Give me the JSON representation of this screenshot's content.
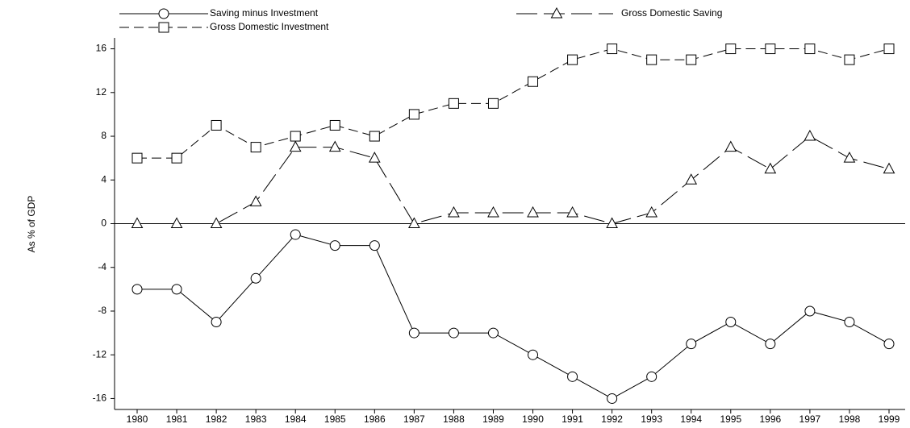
{
  "chart_data": {
    "type": "line",
    "ylabel": "As % of GDP",
    "categories": [
      "1980",
      "1981",
      "1982",
      "1983",
      "1984",
      "1985",
      "1986",
      "1987",
      "1988",
      "1989",
      "1990",
      "1991",
      "1992",
      "1993",
      "1994",
      "1995",
      "1996",
      "1997",
      "1998",
      "1999"
    ],
    "series": [
      {
        "name": "Saving minus Investment",
        "color": "#000000",
        "linestyle": "solid",
        "marker": "circle",
        "values": [
          -6,
          -6,
          -9,
          -5,
          -1,
          -2,
          -2,
          -10,
          -10,
          -10,
          -12,
          -14,
          -16,
          -14,
          -11,
          -9,
          -11,
          -8,
          -9,
          -11
        ]
      },
      {
        "name": "Gross Domestic Saving",
        "color": "#000000",
        "linestyle": "long-dashed",
        "marker": "triangle",
        "values": [
          0,
          0,
          0,
          2,
          7,
          7,
          6,
          0,
          1,
          1,
          1,
          1,
          0,
          1,
          4,
          7,
          5,
          8,
          6,
          5
        ]
      },
      {
        "name": "Gross Domestic Investment",
        "color": "#000000",
        "linestyle": "dashed",
        "marker": "square",
        "values": [
          6,
          6,
          9,
          7,
          8,
          9,
          8,
          10,
          11,
          11,
          13,
          15,
          16,
          15,
          15,
          16,
          16,
          16,
          15,
          16
        ]
      }
    ],
    "ylim": [
      -17,
      17
    ],
    "yticks": [
      -16,
      -12,
      -8,
      -4,
      0,
      4,
      8,
      12,
      16
    ],
    "hline": 0,
    "grid": false
  }
}
